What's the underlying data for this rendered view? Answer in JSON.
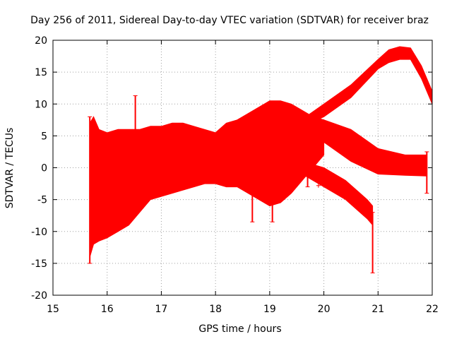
{
  "chart_data": {
    "type": "area",
    "title": "Day 256 of 2011, Sidereal Day-to-day VTEC variation (SDTVAR) for receiver braz",
    "xlabel": "GPS time / hours",
    "ylabel": "SDTVAR / TECUs",
    "xlim": [
      15,
      22
    ],
    "ylim": [
      -20,
      20
    ],
    "x_ticks": [
      "15",
      "16",
      "17",
      "18",
      "19",
      "20",
      "21",
      "22"
    ],
    "y_ticks": [
      "-20",
      "-15",
      "-10",
      "-5",
      "0",
      "5",
      "10",
      "15",
      "20"
    ],
    "grid": true,
    "color": "#ff0000",
    "series": [
      {
        "x": [
          15.68,
          15.75,
          15.85,
          16.0,
          16.2,
          16.4,
          16.6,
          16.8,
          17.0,
          17.2,
          17.4,
          17.6,
          17.8,
          18.0,
          18.2,
          18.4,
          18.6,
          18.8,
          19.0,
          19.2,
          19.4,
          19.6,
          19.8,
          20.0
        ],
        "low": [
          -14,
          -12,
          -11.5,
          -11,
          -10,
          -9,
          -7,
          -5,
          -4.5,
          -4,
          -3.5,
          -3,
          -2.5,
          -2.5,
          -3,
          -3,
          -4,
          -5,
          -6,
          -5.5,
          -4,
          -2,
          0,
          2
        ],
        "high": [
          7,
          8,
          6,
          5.5,
          6,
          6,
          6,
          6.5,
          6.5,
          7,
          7,
          6.5,
          6,
          5.5,
          7,
          7.5,
          8.5,
          9.5,
          10.5,
          10.5,
          10,
          9,
          8,
          7.5
        ]
      },
      {
        "x": [
          19.0,
          19.5,
          20.0,
          20.5,
          21.0,
          21.2,
          21.4,
          21.6,
          21.8,
          22.0
        ],
        "low": [
          7,
          6,
          8,
          11,
          15.5,
          16.5,
          17,
          17,
          14,
          10
        ],
        "high": [
          8,
          7,
          10,
          13,
          17,
          18.5,
          19,
          18.8,
          16,
          12
        ]
      },
      {
        "x": [
          19.5,
          19.8,
          20.0,
          20.5,
          21.0,
          21.5,
          21.9
        ],
        "low": [
          3,
          3.5,
          4,
          1,
          -1,
          -1.2,
          -1.3
        ],
        "high": [
          5.5,
          7,
          7.5,
          6,
          3,
          2,
          2
        ]
      },
      {
        "x": [
          19.3,
          19.6,
          20.0,
          20.4,
          20.8,
          20.9
        ],
        "low": [
          0,
          -1,
          -3,
          -5,
          -8,
          -9
        ],
        "high": [
          1.5,
          1,
          0,
          -2,
          -5,
          -6
        ]
      }
    ],
    "spikes": [
      {
        "x": 15.68,
        "low": -15,
        "high": 8
      },
      {
        "x": 16.52,
        "low": 5,
        "high": 11.3
      },
      {
        "x": 18.68,
        "low": -8.5,
        "high": -3
      },
      {
        "x": 19.05,
        "low": -8.5,
        "high": 0
      },
      {
        "x": 19.7,
        "low": -3,
        "high": 1.5
      },
      {
        "x": 20.9,
        "low": -16.5,
        "high": -7
      },
      {
        "x": 21.9,
        "low": -4,
        "high": 2.5
      }
    ],
    "points": [
      {
        "x": 18.98,
        "y": 0.2
      },
      {
        "x": 18.98,
        "y": -0.8
      },
      {
        "x": 19.9,
        "y": -2.8
      }
    ]
  }
}
